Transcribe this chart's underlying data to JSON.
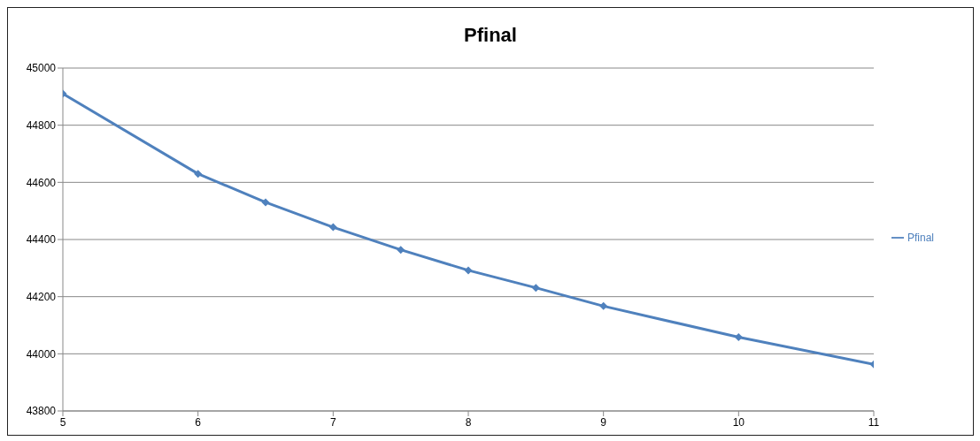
{
  "chart_data": {
    "type": "line",
    "title": "Pfinal",
    "x": [
      5,
      6,
      6.5,
      7,
      7.5,
      8,
      8.5,
      9,
      10,
      11
    ],
    "series": [
      {
        "name": "Pfinal",
        "color": "#4f81bd",
        "values": [
          44910,
          44630,
          44530,
          44443,
          44364,
          44292,
          44231,
          44167,
          44058,
          43963
        ]
      }
    ],
    "xlim": [
      5,
      11
    ],
    "xticks": [
      5,
      6,
      7,
      8,
      9,
      10,
      11
    ],
    "ylim": [
      43800,
      45000
    ],
    "yticks": [
      43800,
      44000,
      44200,
      44400,
      44600,
      44800,
      45000
    ],
    "grid": "y",
    "legend": "right",
    "marker": "diamond",
    "line_style": "solid"
  }
}
